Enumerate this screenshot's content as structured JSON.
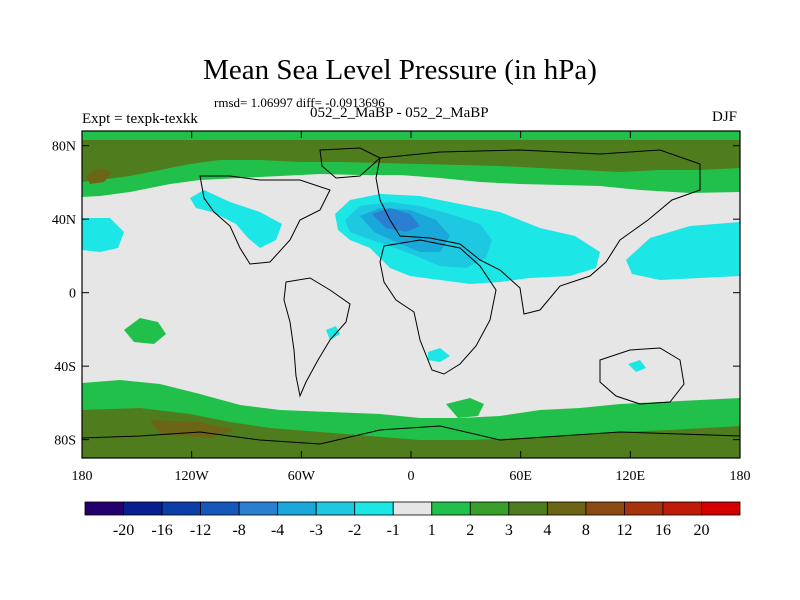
{
  "title": "Mean Sea Level Pressure (in hPa)",
  "stats": "rmsd= 1.06997 diff= -0.0913696",
  "subtitle": "052_2_MaBP - 052_2_MaBP",
  "experiment": "Expt = texpk-texkk",
  "season": "DJF",
  "axes": {
    "y_ticks": [
      {
        "lat": 80,
        "label": "80N"
      },
      {
        "lat": 40,
        "label": "40N"
      },
      {
        "lat": 0,
        "label": "0"
      },
      {
        "lat": -40,
        "label": "40S"
      },
      {
        "lat": -80,
        "label": "80S"
      }
    ],
    "x_ticks": [
      {
        "lon": -180,
        "label": "180"
      },
      {
        "lon": -120,
        "label": "120W"
      },
      {
        "lon": -60,
        "label": "60W"
      },
      {
        "lon": 0,
        "label": "0"
      },
      {
        "lon": 60,
        "label": "60E"
      },
      {
        "lon": 120,
        "label": "120E"
      },
      {
        "lon": 180,
        "label": "180"
      }
    ]
  },
  "colorbar": {
    "colors": [
      "#24006e",
      "#0a1f8f",
      "#0b3ea8",
      "#1558bb",
      "#2b7fd1",
      "#1aa7d9",
      "#1ec8e0",
      "#1de6e6",
      "#e6e6e6",
      "#21c04a",
      "#3a9e2a",
      "#4f7d1e",
      "#6b6515",
      "#8a4a10",
      "#a8320c",
      "#c01a08",
      "#d40000"
    ],
    "labels": [
      "-20",
      "-16",
      "-12",
      "-8",
      "-4",
      "-3",
      "-2",
      "-1",
      "1",
      "2",
      "3",
      "4",
      "8",
      "12",
      "16",
      "20"
    ]
  }
}
